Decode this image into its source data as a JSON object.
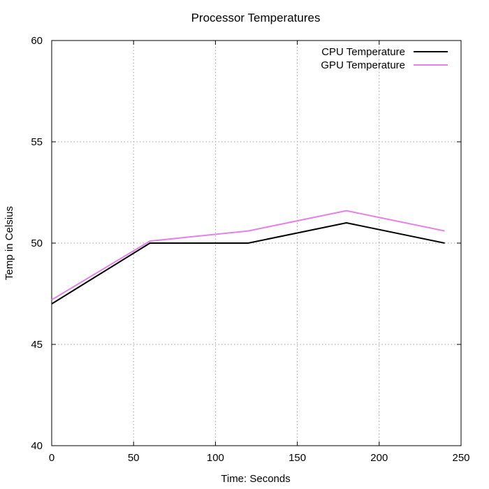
{
  "chart_data": {
    "type": "line",
    "title": "Processor Temperatures",
    "xlabel": "Time: Seconds",
    "ylabel": "Temp in Celsius",
    "xlim": [
      0,
      250
    ],
    "ylim": [
      40,
      60
    ],
    "x_ticks": [
      0,
      50,
      100,
      150,
      200,
      250
    ],
    "y_ticks": [
      40,
      45,
      50,
      55,
      60
    ],
    "grid": true,
    "legend_position": "top-right",
    "series": [
      {
        "name": "CPU Temperature",
        "color": "#000000",
        "x": [
          0,
          60,
          120,
          180,
          240
        ],
        "y": [
          47.0,
          50.0,
          50.0,
          51.0,
          50.0
        ]
      },
      {
        "name": "GPU Temperature",
        "color": "#e580ea",
        "x": [
          0,
          60,
          120,
          180,
          240
        ],
        "y": [
          47.2,
          50.1,
          50.6,
          51.6,
          50.6
        ]
      }
    ]
  }
}
